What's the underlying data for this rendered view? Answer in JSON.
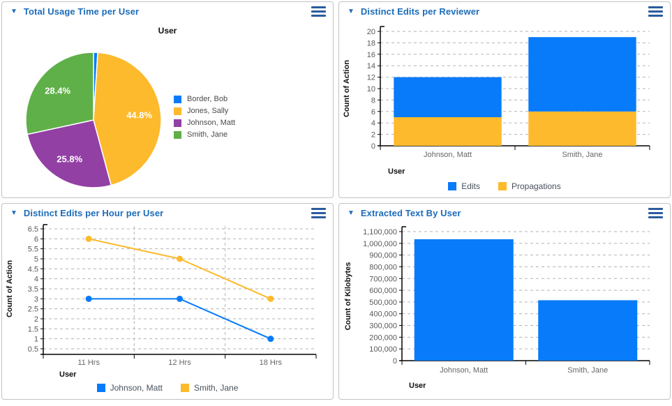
{
  "colors": {
    "blue": "#077bf9",
    "orange": "#fdba2c",
    "purple": "#9340a5",
    "green": "#5fb049",
    "header_text": "#1d6cb8",
    "axis_line": "#000000",
    "grid_line": "#b3b3b3",
    "tick_text": "#595959",
    "category_text": "#666666",
    "axis_title_text": "#111111",
    "pie_label_text": "#ffffff"
  },
  "panels": [
    {
      "title": "Total Usage Time per User"
    },
    {
      "title": "Distinct Edits per Reviewer"
    },
    {
      "title": "Distinct Edits per Hour per User"
    },
    {
      "title": "Extracted Text By User"
    }
  ],
  "chart_data": [
    {
      "name": "Total Usage Time per User",
      "type": "pie",
      "title": "User",
      "slices": [
        {
          "label": "Border, Bob",
          "pct": 1.0,
          "color_key": "blue",
          "data_label": ""
        },
        {
          "label": "Jones, Sally",
          "pct": 44.8,
          "color_key": "orange",
          "data_label": "44.8%"
        },
        {
          "label": "Johnson, Matt",
          "pct": 25.8,
          "color_key": "purple",
          "data_label": "25.8%"
        },
        {
          "label": "Smith, Jane",
          "pct": 28.4,
          "color_key": "green",
          "data_label": "28.4%"
        }
      ],
      "start_angle": "12 o'clock, clockwise",
      "legend_position": "right"
    },
    {
      "name": "Distinct Edits per Reviewer",
      "type": "bar",
      "stacked": true,
      "categories": [
        "Johnson, Matt",
        "Smith, Jane"
      ],
      "series": [
        {
          "name": "Edits",
          "values": [
            7,
            13
          ],
          "color_key": "blue"
        },
        {
          "name": "Propagations",
          "values": [
            5,
            6
          ],
          "color_key": "orange"
        }
      ],
      "stack_bottom_to_top": [
        "Propagations",
        "Edits"
      ],
      "stack_totals": [
        12,
        19
      ],
      "xlabel": "User",
      "ylabel": "Count of Action",
      "ylim": [
        0,
        20
      ],
      "ytick_step": 2,
      "grid": true,
      "legend_position": "bottom"
    },
    {
      "name": "Distinct Edits per Hour per User",
      "type": "line",
      "categories": [
        "11 Hrs",
        "12 Hrs",
        "18 Hrs"
      ],
      "series": [
        {
          "name": "Johnson, Matt",
          "values": [
            3,
            3,
            1
          ],
          "color_key": "blue"
        },
        {
          "name": "Smith, Jane",
          "values": [
            6,
            5,
            3
          ],
          "color_key": "orange"
        }
      ],
      "xlabel": "User",
      "ylabel": "Count of Action",
      "ylim": [
        0.5,
        6.5
      ],
      "ytick_step": 0.5,
      "grid": true,
      "legend_position": "bottom"
    },
    {
      "name": "Extracted Text By User",
      "type": "bar",
      "stacked": false,
      "categories": [
        "Johnson, Matt",
        "Smith, Jane"
      ],
      "series": [
        {
          "name": "Count of Kilobytes",
          "values": [
            1035000,
            515000
          ],
          "color_key": "blue"
        }
      ],
      "xlabel": "User",
      "ylabel": "Count of Kilobytes",
      "ylim": [
        0,
        1100000
      ],
      "ytick_step": 100000,
      "tick_format": "comma",
      "grid": true,
      "legend_position": "none"
    }
  ]
}
